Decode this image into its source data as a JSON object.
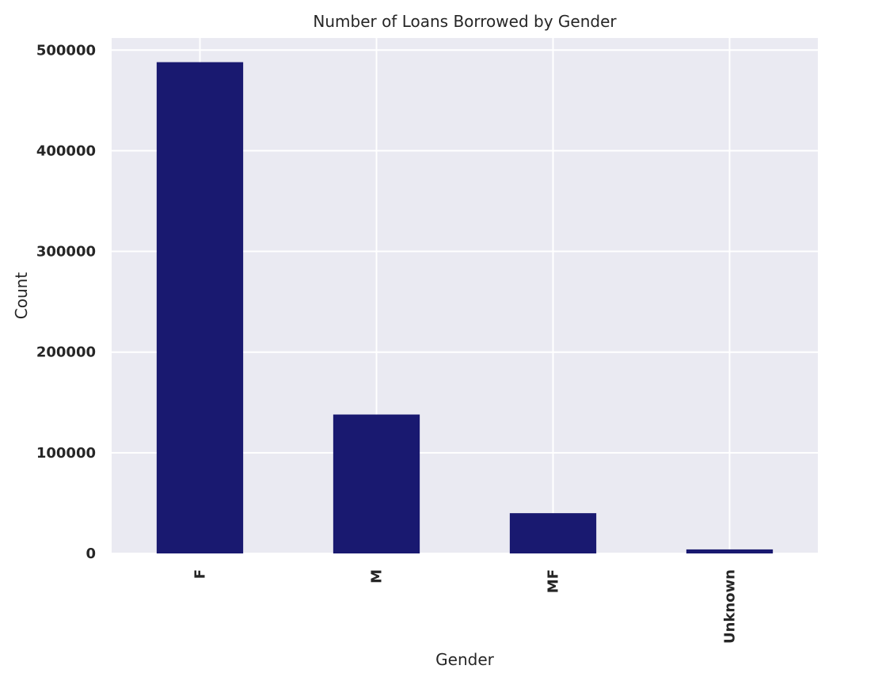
{
  "chart_data": {
    "type": "bar",
    "title": "Number of Loans Borrowed by Gender",
    "xlabel": "Gender",
    "ylabel": "Count",
    "categories": [
      "F",
      "M",
      "MF",
      "Unknown"
    ],
    "values": [
      488000,
      138000,
      40000,
      4000
    ],
    "ylim": [
      0,
      512000
    ],
    "yticks": [
      0,
      100000,
      200000,
      300000,
      400000,
      500000
    ],
    "ytick_labels": [
      "0",
      "100000",
      "200000",
      "300000",
      "400000",
      "500000"
    ],
    "grid": true,
    "legend": "none",
    "bar_color": "#191970",
    "plot_background": "#eaeaf2",
    "grid_color": "#ffffff"
  }
}
